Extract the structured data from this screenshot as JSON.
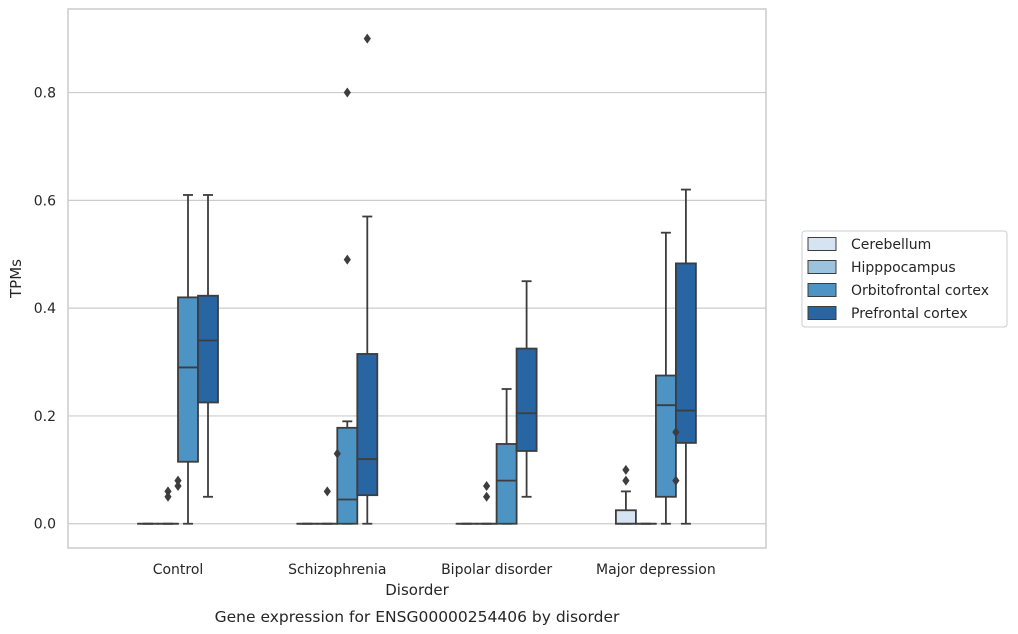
{
  "chart_data": {
    "type": "box",
    "title": "",
    "caption": "Gene expression for ENSG00000254406 by disorder",
    "xlabel": "Disorder",
    "ylabel": "TPMs",
    "ylim": [
      -0.045,
      0.955
    ],
    "yticks": [
      0.0,
      0.2,
      0.4,
      0.6,
      0.8
    ],
    "ytick_labels": [
      "0.0",
      "0.2",
      "0.4",
      "0.6",
      "0.8"
    ],
    "grid": "horizontal",
    "legend_position": "right",
    "categories": [
      "Control",
      "Schizophrenia",
      "Bipolar disorder",
      "Major depression"
    ],
    "series": [
      {
        "name": "Cerebellum",
        "color": "#d6e3f0",
        "boxes": [
          {
            "min": 0,
            "q1": 0,
            "median": 0,
            "q3": 0,
            "max": 0,
            "outliers": []
          },
          {
            "min": 0,
            "q1": 0,
            "median": 0,
            "q3": 0,
            "max": 0,
            "outliers": []
          },
          {
            "min": 0,
            "q1": 0,
            "median": 0,
            "q3": 0,
            "max": 0,
            "outliers": []
          },
          {
            "min": 0,
            "q1": 0,
            "median": 0,
            "q3": 0.025,
            "max": 0.06,
            "outliers": [
              0.08,
              0.1
            ]
          }
        ]
      },
      {
        "name": "Hipppocampus",
        "color": "#9cc2dd",
        "boxes": [
          {
            "min": 0,
            "q1": 0,
            "median": 0,
            "q3": 0,
            "max": 0,
            "outliers": [
              0.05,
              0.06
            ]
          },
          {
            "min": 0,
            "q1": 0,
            "median": 0,
            "q3": 0,
            "max": 0,
            "outliers": [
              0.06
            ]
          },
          {
            "min": 0,
            "q1": 0,
            "median": 0,
            "q3": 0,
            "max": 0,
            "outliers": [
              0.05,
              0.07
            ]
          },
          {
            "min": 0,
            "q1": 0,
            "median": 0,
            "q3": 0,
            "max": 0,
            "outliers": []
          }
        ]
      },
      {
        "name": "Orbitofrontal cortex",
        "color": "#4d93c4",
        "boxes": [
          {
            "min": 0,
            "q1": 0.115,
            "median": 0.29,
            "q3": 0.42,
            "max": 0.61,
            "outliers": []
          },
          {
            "min": 0,
            "q1": 0,
            "median": 0.045,
            "q3": 0.178,
            "max": 0.19,
            "outliers": [
              0.49,
              0.8
            ]
          },
          {
            "min": 0,
            "q1": 0,
            "median": 0.08,
            "q3": 0.148,
            "max": 0.25,
            "outliers": []
          },
          {
            "min": 0,
            "q1": 0.05,
            "median": 0.22,
            "q3": 0.275,
            "max": 0.54,
            "outliers": []
          }
        ]
      },
      {
        "name": "Prefrontal cortex",
        "color": "#2865a3",
        "boxes": [
          {
            "min": 0.05,
            "q1": 0.225,
            "median": 0.34,
            "q3": 0.423,
            "max": 0.61,
            "outliers": []
          },
          {
            "min": 0,
            "q1": 0.053,
            "median": 0.12,
            "q3": 0.315,
            "max": 0.57,
            "outliers": [
              0.9
            ]
          },
          {
            "min": 0.05,
            "q1": 0.135,
            "median": 0.205,
            "q3": 0.325,
            "max": 0.45,
            "outliers": []
          },
          {
            "min": 0,
            "q1": 0.15,
            "median": 0.21,
            "q3": 0.483,
            "max": 0.62,
            "outliers": []
          }
        ]
      }
    ],
    "extra_outliers": [
      {
        "category": "Control",
        "between": [
          "Hipppocampus",
          "Orbitofrontal cortex"
        ],
        "values": [
          0.07,
          0.08
        ]
      },
      {
        "category": "Schizophrenia",
        "between": [
          "Hipppocampus",
          "Orbitofrontal cortex"
        ],
        "values": [
          0.13
        ]
      },
      {
        "category": "Major depression",
        "between": [
          "Orbitofrontal cortex",
          "Prefrontal cortex"
        ],
        "values": [
          0.08,
          0.17
        ]
      }
    ]
  }
}
